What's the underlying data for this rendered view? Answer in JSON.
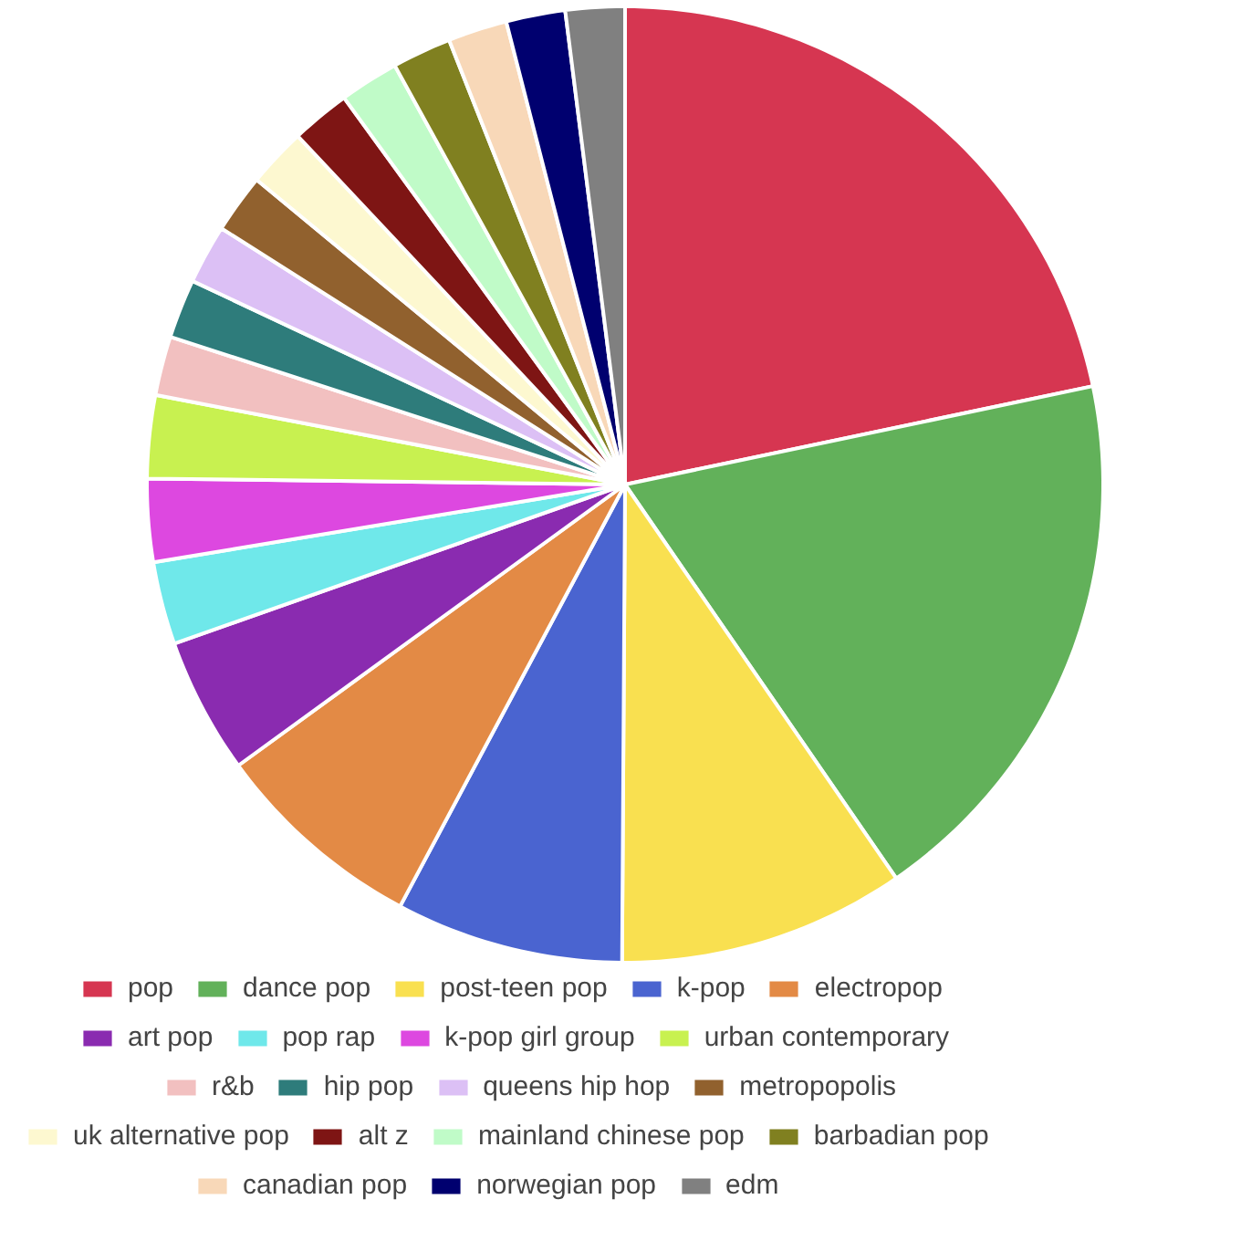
{
  "chart_data": {
    "type": "pie",
    "legend": "bottom",
    "categories": [
      "pop",
      "dance pop",
      "post-teen pop",
      "k-pop",
      "electropop",
      "art pop",
      "pop rap",
      "k-pop girl group",
      "urban contemporary",
      "r&b",
      "hip pop",
      "queens hip hop",
      "metropopolis",
      "uk alternative pop",
      "alt z",
      "mainland chinese pop",
      "barbadian pop",
      "canadian pop",
      "norwegian pop",
      "edm"
    ],
    "values": [
      21.7,
      18.7,
      9.7,
      7.7,
      7.2,
      4.6,
      2.8,
      2.8,
      2.8,
      2.0,
      2.0,
      2.0,
      2.0,
      2.0,
      2.0,
      2.0,
      2.0,
      2.0,
      2.0,
      2.0
    ],
    "colors": [
      "#d63651",
      "#62b15a",
      "#f9e050",
      "#4a64d0",
      "#e38a45",
      "#8a2bb0",
      "#6fe8ea",
      "#dd48e0",
      "#c8f150",
      "#f2c0c0",
      "#2e7c7b",
      "#dcc0f5",
      "#91612e",
      "#fdf8d0",
      "#7e1514",
      "#c0fbc8",
      "#808020",
      "#f8d8b8",
      "#00006f",
      "#808080"
    ]
  }
}
